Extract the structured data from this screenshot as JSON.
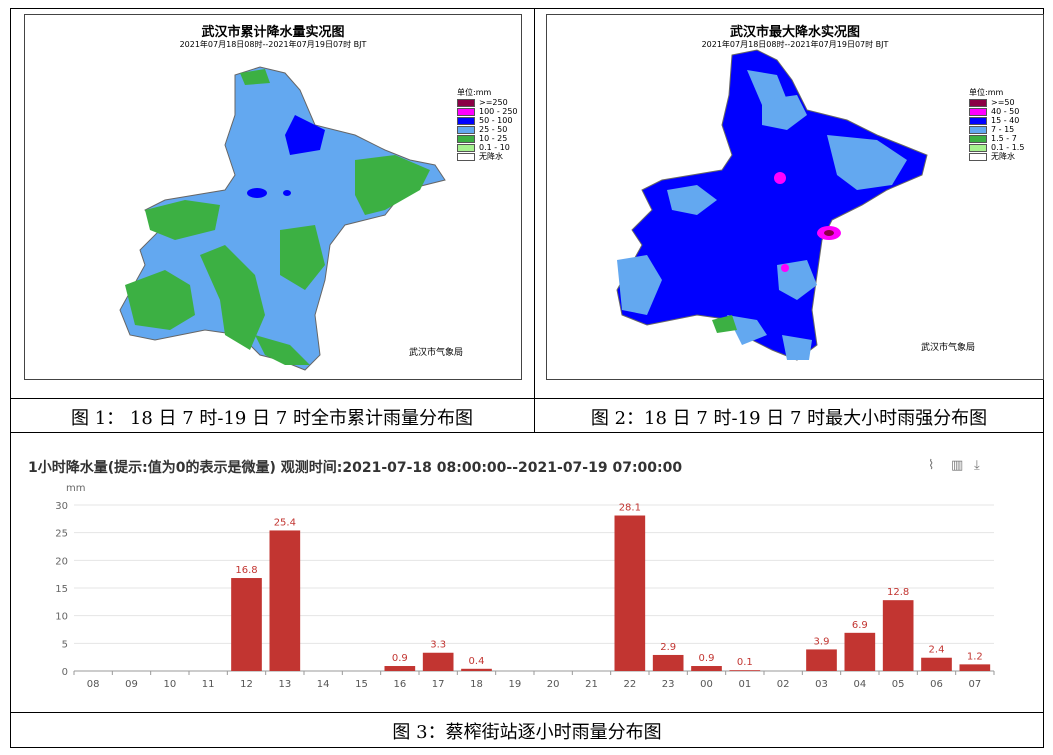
{
  "map1": {
    "title": "武汉市累计降水量实况图",
    "subtitle": "2021年07月18日08时--2021年07月19日07时  BJT",
    "legend_unit": "单位:mm",
    "legend": [
      {
        "label": ">=250",
        "color": "#8b0045"
      },
      {
        "label": "100 - 250",
        "color": "#ff00ff"
      },
      {
        "label": "50 - 100",
        "color": "#0000ff"
      },
      {
        "label": "25 - 50",
        "color": "#63a8f0"
      },
      {
        "label": "10 - 25",
        "color": "#3cb043"
      },
      {
        "label": "0.1 - 10",
        "color": "#a6f28f"
      },
      {
        "label": "无降水",
        "color": "#ffffff"
      }
    ],
    "credit": "武汉市气象局"
  },
  "map2": {
    "title": "武汉市最大降水实况图",
    "subtitle": "2021年07月18日08时--2021年07月19日07时  BJT",
    "legend_unit": "单位:mm",
    "legend": [
      {
        "label": ">=50",
        "color": "#8b0045"
      },
      {
        "label": "40 - 50",
        "color": "#ff00ff"
      },
      {
        "label": "15 - 40",
        "color": "#0000ff"
      },
      {
        "label": "7 - 15",
        "color": "#63a8f0"
      },
      {
        "label": "1.5 - 7",
        "color": "#3cb043"
      },
      {
        "label": "0.1 - 1.5",
        "color": "#a6f28f"
      },
      {
        "label": "无降水",
        "color": "#ffffff"
      }
    ],
    "credit": "武汉市气象局"
  },
  "captions": {
    "fig1": "图 1：  18 日 7 时-19 日 7 时全市累计雨量分布图",
    "fig2": "图 2：18 日 7 时-19 日 7 时最大小时雨强分布图",
    "fig3": "图 3：蔡榨街站逐小时雨量分布图"
  },
  "chart_data": {
    "type": "bar",
    "title": "1小时降水量(提示:值为0的表示是微量)   观测时间:2021-07-18 08:00:00--2021-07-19 07:00:00",
    "ylabel": "mm",
    "ylim": [
      0,
      30
    ],
    "yticks": [
      0,
      5,
      10,
      15,
      20,
      25,
      30
    ],
    "categories": [
      "08",
      "09",
      "10",
      "11",
      "12",
      "13",
      "14",
      "15",
      "16",
      "17",
      "18",
      "19",
      "20",
      "21",
      "22",
      "23",
      "00",
      "01",
      "02",
      "03",
      "04",
      "05",
      "06",
      "07"
    ],
    "values": [
      null,
      null,
      null,
      null,
      16.8,
      25.4,
      null,
      null,
      0.9,
      3.3,
      0.4,
      null,
      null,
      null,
      28.1,
      2.9,
      0.9,
      0.1,
      null,
      3.9,
      6.9,
      12.8,
      2.4,
      1.2
    ],
    "labels": [
      "",
      "",
      "",
      "",
      "16.8",
      "25.4",
      "",
      "",
      "0.9",
      "3.3",
      "0.4",
      "",
      "",
      "",
      "28.1",
      "2.9",
      "0.9",
      "0.1",
      "",
      "3.9",
      "6.9",
      "12.8",
      "2.4",
      "1.2"
    ],
    "bar_color": "#c23531",
    "grid": true
  }
}
